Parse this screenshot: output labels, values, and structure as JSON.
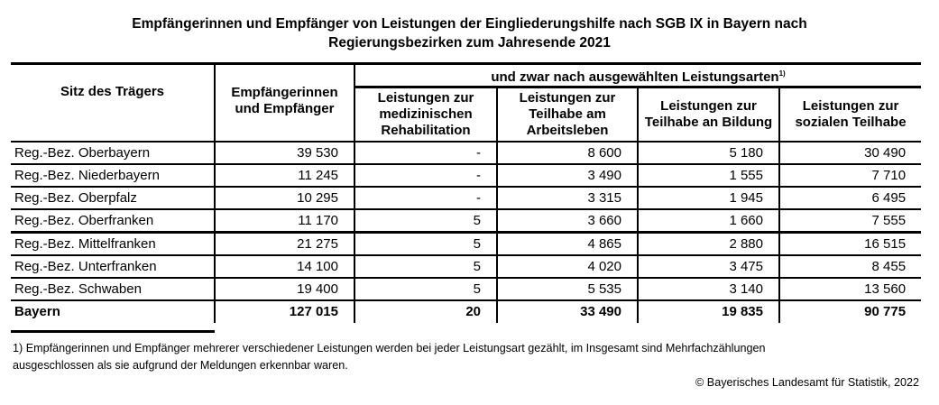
{
  "title": {
    "line1": "Empfängerinnen und Empfänger von Leistungen der Eingliederungshilfe nach SGB IX in Bayern nach",
    "line2": "Regierungsbezirken zum Jahresende 2021"
  },
  "table": {
    "col_seat": "Sitz des Trägers",
    "col_total": "Empfängerinnen und Empfänger",
    "group_header": "und zwar nach ausgewählten Leistungsarten",
    "group_footnote_mark": "1)",
    "col_med": "Leistungen zur medizinischen Rehabilitation",
    "col_arbeit": "Leistungen zur Teilhabe am Arbeitsleben",
    "col_bildung": "Leistungen zur Teilhabe an Bildung",
    "col_sozial": "Leistungen zur sozialen Teilhabe",
    "rows": [
      [
        "Reg.-Bez. Oberbayern",
        "39 530",
        "-",
        "8 600",
        "5 180",
        "30 490"
      ],
      [
        "Reg.-Bez. Niederbayern",
        "11 245",
        "-",
        "3 490",
        "1 555",
        "7 710"
      ],
      [
        "Reg.-Bez. Oberpfalz",
        "10 295",
        "-",
        "3 315",
        "1 945",
        "6 495"
      ],
      [
        "Reg.-Bez. Oberfranken",
        "11 170",
        "5",
        "3 660",
        "1 660",
        "7 555"
      ],
      [
        "Reg.-Bez. Mittelfranken",
        "21 275",
        "5",
        "4 865",
        "2 880",
        "16 515"
      ],
      [
        "Reg.-Bez. Unterfranken",
        "14 100",
        "5",
        "4 020",
        "3 475",
        "8 455"
      ],
      [
        "Reg.-Bez. Schwaben",
        "19 400",
        "5",
        "5 535",
        "3 140",
        "13 560"
      ],
      [
        "Bayern",
        "127 015",
        "20",
        "33 490",
        "19 835",
        "90 775"
      ]
    ]
  },
  "footnote": {
    "line1": "1) Empfängerinnen und Empfänger mehrerer verschiedener Leistungen werden bei jeder Leistungsart gezählt, im Insgesamt sind Mehrfachzählungen",
    "line2": "ausgeschlossen als sie aufgrund der Meldungen erkennbar waren."
  },
  "copyright": "© Bayerisches Landesamt für Statistik, 2022"
}
